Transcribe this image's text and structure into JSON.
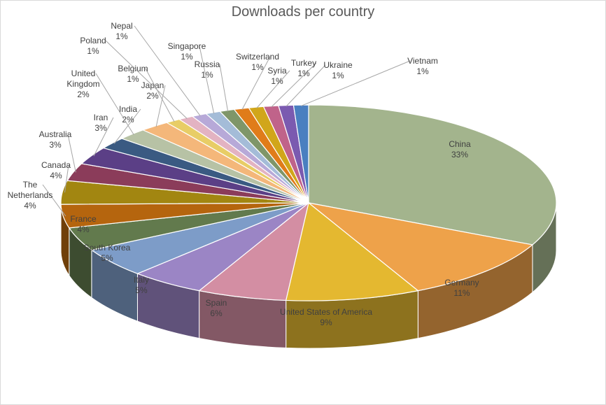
{
  "chart_data": {
    "type": "pie",
    "title": "Downloads per country",
    "style": "3d-exploded-none",
    "slices": [
      {
        "name": "China",
        "value": 33,
        "label": "33%",
        "color": "#a3b48d"
      },
      {
        "name": "Germany",
        "value": 11,
        "label": "11%",
        "color": "#eea24a"
      },
      {
        "name": "United States of America",
        "value": 9,
        "label": "9%",
        "color": "#e4b830"
      },
      {
        "name": "Spain",
        "value": 6,
        "label": "6%",
        "color": "#d38ea3"
      },
      {
        "name": "Italy",
        "value": 5,
        "label": "5%",
        "color": "#9b85c5"
      },
      {
        "name": "South Korea",
        "value": 5,
        "label": "5%",
        "color": "#7d9cc8"
      },
      {
        "name": "France",
        "value": 4,
        "label": "4%",
        "color": "#627a4d"
      },
      {
        "name": "The Netherlands",
        "value": 4,
        "label": "4%",
        "color": "#b5650e"
      },
      {
        "name": "Canada",
        "value": 4,
        "label": "4%",
        "color": "#a28611"
      },
      {
        "name": "Australia",
        "value": 3,
        "label": "3%",
        "color": "#8b3c5a"
      },
      {
        "name": "Iran",
        "value": 3,
        "label": "3%",
        "color": "#5b3f86"
      },
      {
        "name": "India",
        "value": 2,
        "label": "2%",
        "color": "#3a5a82"
      },
      {
        "name": "United Kingdom",
        "value": 2,
        "label": "2%",
        "color": "#b7c2a5"
      },
      {
        "name": "Japan",
        "value": 2,
        "label": "2%",
        "color": "#f4b77a"
      },
      {
        "name": "Belgium",
        "value": 1,
        "label": "1%",
        "color": "#e8cd66"
      },
      {
        "name": "Poland",
        "value": 1,
        "label": "1%",
        "color": "#e3b3c2"
      },
      {
        "name": "Nepal",
        "value": 1,
        "label": "1%",
        "color": "#b7a9d8"
      },
      {
        "name": "Singapore",
        "value": 1,
        "label": "1%",
        "color": "#a4bcd8"
      },
      {
        "name": "Russia",
        "value": 1,
        "label": "1%",
        "color": "#7f9669"
      },
      {
        "name": "Switzerland",
        "value": 1,
        "label": "1%",
        "color": "#e07c1a"
      },
      {
        "name": "Syria",
        "value": 1,
        "label": "1%",
        "color": "#d1a61a"
      },
      {
        "name": "Turkey",
        "value": 1,
        "label": "1%",
        "color": "#c0638a"
      },
      {
        "name": "Ukraine",
        "value": 1,
        "label": "1%",
        "color": "#7b5ab0"
      },
      {
        "name": "Vietnam",
        "value": 1,
        "label": "1%",
        "color": "#4a7fc0"
      }
    ]
  }
}
